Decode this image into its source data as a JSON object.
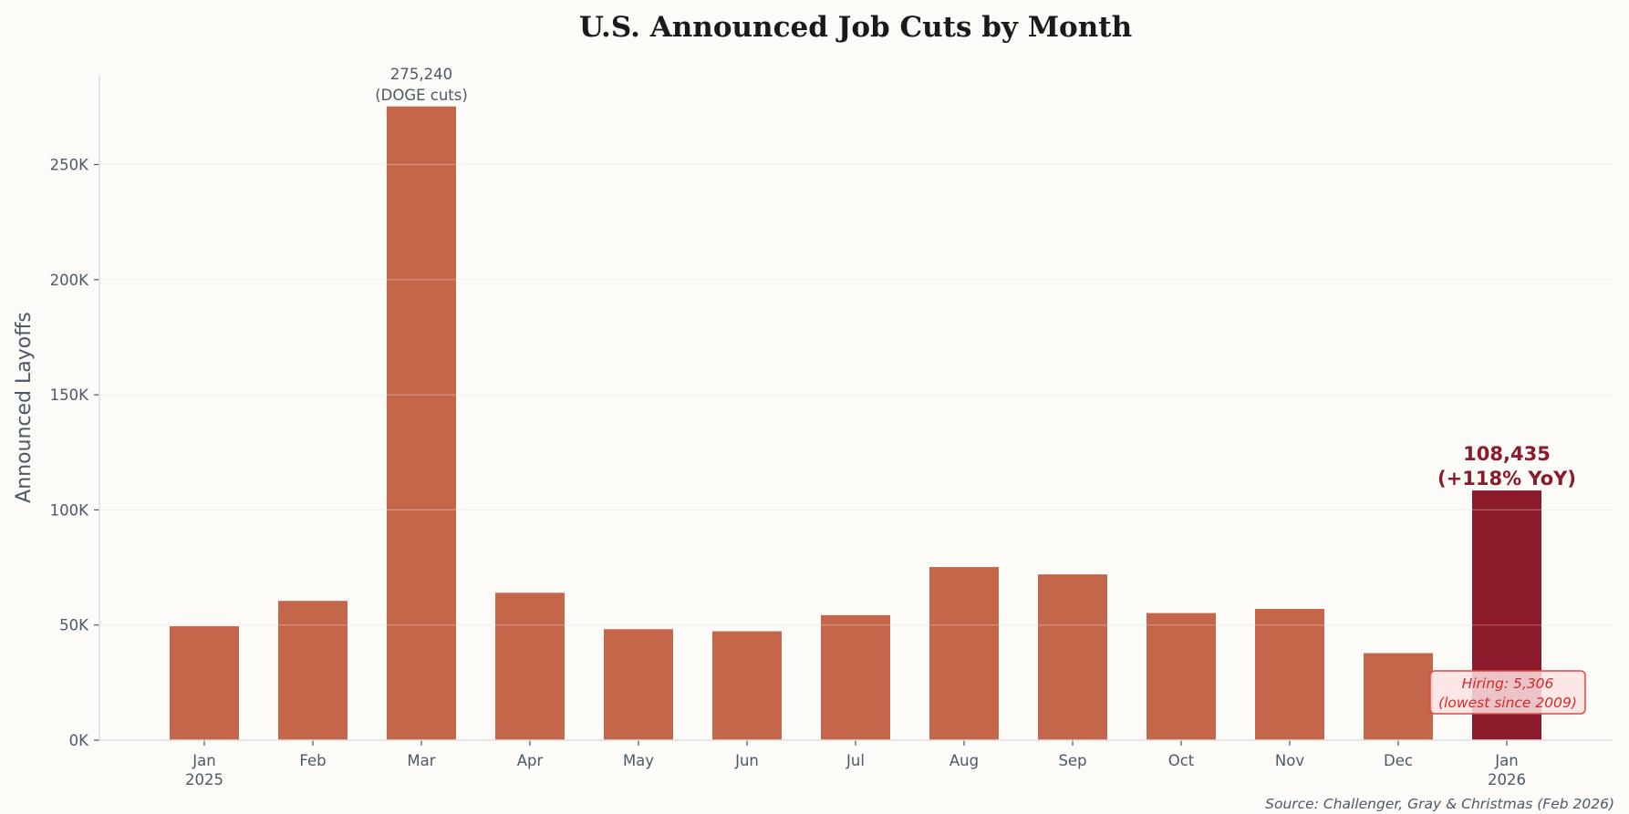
{
  "chart_data": {
    "type": "bar",
    "title": "U.S. Announced Job Cuts by Month",
    "ylabel": "Announced Layoffs",
    "xlabel": "",
    "categories": [
      "Jan\n2025",
      "Feb",
      "Mar",
      "Apr",
      "May",
      "Jun",
      "Jul",
      "Aug",
      "Sep",
      "Oct",
      "Nov",
      "Dec",
      "Jan\n2026"
    ],
    "values": [
      49500,
      60500,
      275240,
      64000,
      48200,
      47300,
      54300,
      75200,
      72000,
      55200,
      57000,
      37800,
      108435
    ],
    "ylim": [
      0,
      289000
    ],
    "yticks": [
      0,
      50000,
      100000,
      150000,
      200000,
      250000
    ],
    "ytick_labels": [
      "0K",
      "50K",
      "100K",
      "150K",
      "200K",
      "250K"
    ],
    "grid": "horizontal",
    "colors": {
      "bar": "#c4664a",
      "highlight": "#8b1a2b",
      "annotation": "#d42a2a",
      "background": "#fcfbf7"
    },
    "annotations": {
      "peak": {
        "line1": "275,240",
        "line2": "(DOGE cuts)"
      },
      "latest": {
        "line1": "108,435",
        "line2": "(+118% YoY)"
      },
      "hiring": {
        "line1": "Hiring: 5,306",
        "line2": "(lowest since 2009)"
      }
    },
    "source": "Source: Challenger, Gray & Christmas (Feb 2026)"
  }
}
